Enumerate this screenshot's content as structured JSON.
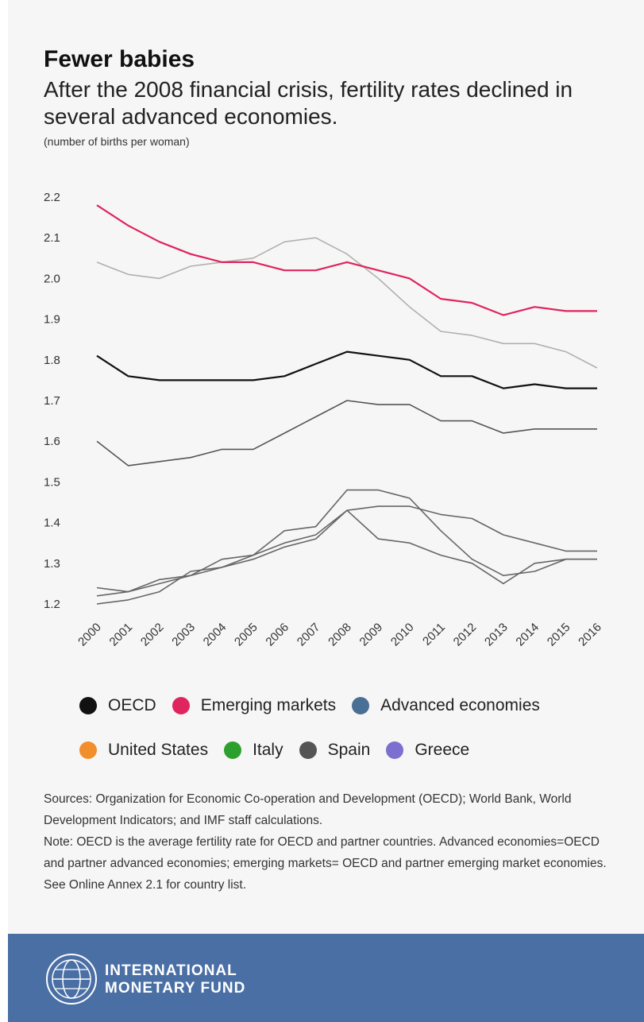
{
  "title": "Fewer babies",
  "subtitle": "After the 2008 financial crisis, fertility rates declined in several advanced economies.",
  "unit_label": "(number of births per woman)",
  "chart_data": {
    "type": "line",
    "x": [
      2000,
      2001,
      2002,
      2003,
      2004,
      2005,
      2006,
      2007,
      2008,
      2009,
      2010,
      2011,
      2012,
      2013,
      2014,
      2015,
      2016
    ],
    "yticks": [
      "1.2",
      "1.3",
      "1.4",
      "1.5",
      "1.6",
      "1.7",
      "1.8",
      "1.9",
      "2.0",
      "2.1",
      "2.2"
    ],
    "ylim": [
      1.2,
      2.2
    ],
    "grid": false,
    "legend_position": "bottom",
    "series": [
      {
        "name": "OECD",
        "color": "#111111",
        "values": [
          1.81,
          1.76,
          1.75,
          1.75,
          1.75,
          1.75,
          1.76,
          1.79,
          1.82,
          1.81,
          1.8,
          1.76,
          1.76,
          1.73,
          1.74,
          1.73,
          1.73
        ]
      },
      {
        "name": "Emerging markets",
        "color": "#e0245e",
        "values": [
          2.18,
          2.13,
          2.09,
          2.06,
          2.04,
          2.04,
          2.02,
          2.02,
          2.04,
          2.02,
          2.0,
          1.95,
          1.94,
          1.91,
          1.93,
          1.92,
          1.92
        ]
      },
      {
        "name": "Advanced economies",
        "color": "#4a6f95",
        "values": [
          1.6,
          1.54,
          1.55,
          1.56,
          1.58,
          1.58,
          1.62,
          1.66,
          1.7,
          1.69,
          1.69,
          1.65,
          1.65,
          1.62,
          1.63,
          1.63,
          1.63
        ]
      },
      {
        "name": "United States",
        "color": "#f28e2b",
        "values": [
          2.04,
          2.01,
          2.0,
          2.03,
          2.04,
          2.05,
          2.09,
          2.1,
          2.06,
          2.0,
          1.93,
          1.87,
          1.86,
          1.84,
          1.84,
          1.82,
          1.78
        ]
      },
      {
        "name": "Italy",
        "color": "#2ca02c",
        "values": [
          1.24,
          1.23,
          1.25,
          1.27,
          1.31,
          1.32,
          1.35,
          1.37,
          1.43,
          1.44,
          1.44,
          1.42,
          1.41,
          1.37,
          1.35,
          1.33,
          1.33
        ]
      },
      {
        "name": "Spain",
        "color": "#555555",
        "values": [
          1.22,
          1.23,
          1.26,
          1.27,
          1.29,
          1.31,
          1.34,
          1.36,
          1.43,
          1.36,
          1.35,
          1.32,
          1.3,
          1.25,
          1.3,
          1.31,
          1.31
        ]
      },
      {
        "name": "Greece",
        "color": "#7b6fcf",
        "values": [
          1.2,
          1.21,
          1.23,
          1.28,
          1.29,
          1.32,
          1.38,
          1.39,
          1.48,
          1.48,
          1.46,
          1.38,
          1.31,
          1.27,
          1.28,
          1.31,
          1.31
        ]
      }
    ]
  },
  "sources_text": "Sources: Organization for Economic Co-operation and Development (OECD); World Bank, World Development Indicators; and IMF staff calculations.",
  "note_text": "Note: OECD is the average fertility rate for OECD and partner countries. Advanced economies=OECD and partner advanced economies; emerging markets= OECD and partner emerging market economies. See Online Annex 2.1 for country list.",
  "footer": {
    "org_line1": "INTERNATIONAL",
    "org_line2": "MONETARY FUND",
    "bg_color": "#4a6fa5"
  }
}
